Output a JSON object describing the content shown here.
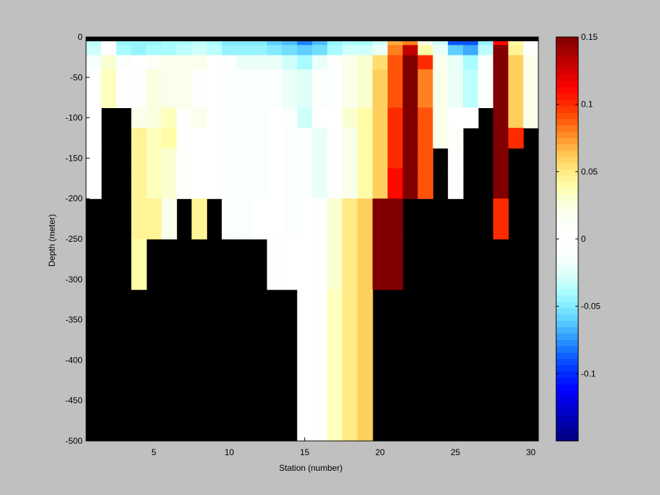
{
  "chart_data": {
    "type": "heatmap",
    "xlabel": "Station (number)",
    "ylabel": "Depth (meter)",
    "xlim": [
      1,
      31
    ],
    "ylim": [
      -500,
      0
    ],
    "xticks": [
      5,
      10,
      15,
      20,
      25,
      30
    ],
    "yticks": [
      0,
      -50,
      -100,
      -150,
      -200,
      -250,
      -300,
      -350,
      -400,
      -450,
      -500
    ],
    "clim": [
      -0.15,
      0.15
    ],
    "colorbar_ticks": [
      0.15,
      0.1,
      0.05,
      0,
      -0.05,
      -0.1
    ],
    "colorbar_tick_labels": [
      "0.15",
      "0.1",
      "0.05",
      "0",
      "-0.05",
      "-0.1"
    ],
    "colorbar_location": "right",
    "land_color": "#000000",
    "stations": [
      1,
      2,
      3,
      4,
      5,
      6,
      7,
      8,
      9,
      10,
      11,
      12,
      13,
      14,
      15,
      16,
      17,
      18,
      19,
      20,
      21,
      22,
      23,
      24,
      25,
      26,
      27,
      28,
      29,
      30
    ],
    "bottom_depth": [
      -200,
      -100,
      -100,
      -300,
      -300,
      -250,
      -250,
      -200,
      -250,
      -200,
      -250,
      -250,
      -300,
      -300,
      -400,
      -400,
      -400,
      -400,
      -400,
      -400,
      -300,
      -300,
      -200,
      -150,
      -200,
      -125,
      -100,
      -250,
      -150,
      -125
    ],
    "depth_rows": [
      {
        "depth": -5,
        "values": [
          -0.035,
          0.0,
          -0.045,
          -0.045,
          -0.045,
          -0.04,
          -0.04,
          -0.035,
          -0.04,
          -0.05,
          -0.05,
          -0.05,
          -0.06,
          -0.065,
          -0.08,
          -0.065,
          -0.045,
          -0.04,
          -0.04,
          -0.03,
          0.07,
          0.08,
          0.02,
          -0.03,
          -0.09,
          -0.09,
          -0.045,
          0.11,
          0.04,
          0.0
        ]
      },
      {
        "depth": -15,
        "values": [
          -0.03,
          0.0,
          -0.04,
          -0.045,
          -0.04,
          -0.04,
          -0.035,
          -0.03,
          -0.035,
          -0.045,
          -0.045,
          -0.045,
          -0.05,
          -0.055,
          -0.06,
          -0.055,
          -0.04,
          -0.03,
          -0.03,
          -0.02,
          0.08,
          0.13,
          0.04,
          -0.02,
          -0.06,
          -0.07,
          -0.035,
          0.15,
          0.045,
          0.01
        ]
      },
      {
        "depth": -30,
        "values": [
          -0.015,
          0.03,
          -0.01,
          0.0,
          0.015,
          0.02,
          0.02,
          0.02,
          0.0,
          -0.01,
          -0.02,
          -0.02,
          -0.02,
          -0.03,
          -0.04,
          -0.02,
          0.01,
          0.02,
          0.03,
          0.055,
          0.09,
          0.15,
          0.1,
          0.02,
          -0.02,
          -0.04,
          -0.01,
          0.15,
          0.06,
          0.02
        ]
      },
      {
        "depth": -50,
        "values": [
          0.0,
          0.035,
          0.0,
          0.01,
          0.025,
          0.02,
          0.02,
          0.01,
          0.0,
          -0.01,
          -0.01,
          -0.01,
          -0.01,
          -0.02,
          -0.025,
          -0.01,
          0.01,
          0.02,
          0.03,
          0.06,
          0.09,
          0.15,
          0.08,
          0.02,
          -0.02,
          -0.035,
          -0.01,
          0.15,
          0.06,
          0.02
        ]
      },
      {
        "depth": -75,
        "values": [
          0.0,
          0.035,
          0.0,
          0.01,
          0.025,
          0.02,
          0.02,
          0.01,
          0.0,
          -0.01,
          -0.01,
          -0.01,
          -0.01,
          -0.02,
          -0.025,
          -0.01,
          0.01,
          0.02,
          0.03,
          0.06,
          0.09,
          0.15,
          0.08,
          0.02,
          -0.02,
          -0.035,
          -0.01,
          0.15,
          0.06,
          0.02
        ]
      },
      {
        "depth": -100,
        "values": [
          0.0,
          null,
          null,
          0.02,
          0.025,
          0.035,
          0.01,
          0.02,
          0.0,
          -0.01,
          -0.01,
          -0.01,
          -0.005,
          -0.01,
          -0.03,
          0.0,
          0.0,
          0.03,
          0.04,
          0.06,
          0.1,
          0.15,
          0.09,
          0.02,
          0.0,
          0.0,
          null,
          0.15,
          0.06,
          0.02
        ]
      },
      {
        "depth": -125,
        "values": [
          0.0,
          null,
          null,
          0.045,
          0.035,
          0.04,
          0.01,
          0.0,
          0.0,
          -0.01,
          -0.01,
          -0.01,
          0.0,
          -0.01,
          0.01,
          -0.02,
          0.01,
          0.02,
          0.04,
          0.06,
          0.1,
          0.15,
          0.09,
          0.02,
          0.01,
          null,
          null,
          0.15,
          0.1,
          null
        ]
      },
      {
        "depth": -150,
        "values": [
          0.0,
          null,
          null,
          0.045,
          0.035,
          0.03,
          0.01,
          0.0,
          0.0,
          -0.01,
          -0.01,
          -0.01,
          0.0,
          -0.01,
          0.01,
          -0.02,
          0.01,
          0.02,
          0.04,
          0.06,
          0.1,
          0.15,
          0.09,
          null,
          0.01,
          null,
          null,
          0.15,
          null,
          null
        ]
      },
      {
        "depth": -175,
        "values": [
          0.0,
          null,
          null,
          0.045,
          0.035,
          0.03,
          0.01,
          0.0,
          0.0,
          -0.01,
          -0.01,
          -0.01,
          0.0,
          -0.01,
          0.01,
          -0.02,
          0.01,
          0.02,
          0.04,
          0.06,
          0.11,
          0.15,
          0.09,
          null,
          0.01,
          null,
          null,
          0.15,
          null,
          null
        ]
      },
      {
        "depth": -225,
        "values": [
          null,
          null,
          null,
          0.045,
          0.045,
          0.02,
          null,
          0.045,
          null,
          -0.01,
          -0.01,
          -0.005,
          0.0,
          -0.01,
          0.0,
          0.01,
          0.03,
          0.05,
          0.06,
          0.15,
          0.15,
          null,
          null,
          null,
          null,
          null,
          null,
          0.1,
          null,
          null
        ]
      },
      {
        "depth": -275,
        "values": [
          null,
          null,
          null,
          0.04,
          null,
          null,
          null,
          null,
          null,
          null,
          null,
          null,
          0.01,
          0.005,
          0.0,
          0.01,
          0.03,
          0.05,
          0.06,
          0.15,
          0.15,
          null,
          null,
          null,
          null,
          null,
          null,
          null,
          null,
          null
        ]
      },
      {
        "depth": -350,
        "values": [
          null,
          null,
          null,
          null,
          null,
          null,
          null,
          null,
          null,
          null,
          null,
          null,
          null,
          null,
          0.0,
          0.01,
          0.035,
          0.05,
          0.06,
          null,
          null,
          null,
          null,
          null,
          null,
          null,
          null,
          null,
          null,
          null
        ]
      }
    ]
  }
}
